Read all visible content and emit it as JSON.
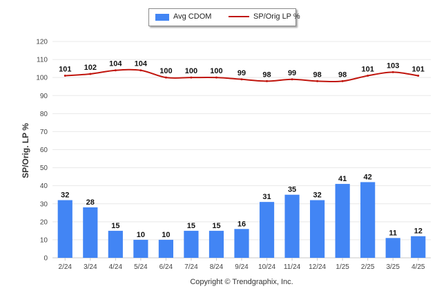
{
  "chart_data": {
    "type": "bar",
    "categories": [
      "2/24",
      "3/24",
      "4/24",
      "5/24",
      "6/24",
      "7/24",
      "8/24",
      "9/24",
      "10/24",
      "11/24",
      "12/24",
      "1/25",
      "2/25",
      "3/25",
      "4/25"
    ],
    "series": [
      {
        "name": "Avg CDOM",
        "type": "bar",
        "color": "#4285f4",
        "values": [
          32,
          28,
          15,
          10,
          10,
          15,
          15,
          16,
          31,
          35,
          32,
          41,
          42,
          11,
          12
        ]
      },
      {
        "name": "SP/Orig LP %",
        "type": "line",
        "color": "#c0140c",
        "values": [
          101,
          102,
          104,
          104,
          100,
          100,
          100,
          99,
          98,
          99,
          98,
          98,
          101,
          103,
          101
        ]
      }
    ],
    "ylabel": "SP/Orig. LP %",
    "xlabel": "",
    "ylim": [
      0,
      120
    ],
    "yticks": [
      0,
      10,
      20,
      30,
      40,
      50,
      60,
      70,
      80,
      90,
      100,
      110,
      120
    ],
    "grid": true,
    "legend_position": "top-center",
    "credit": "Copyright © Trendgraphix, Inc."
  }
}
